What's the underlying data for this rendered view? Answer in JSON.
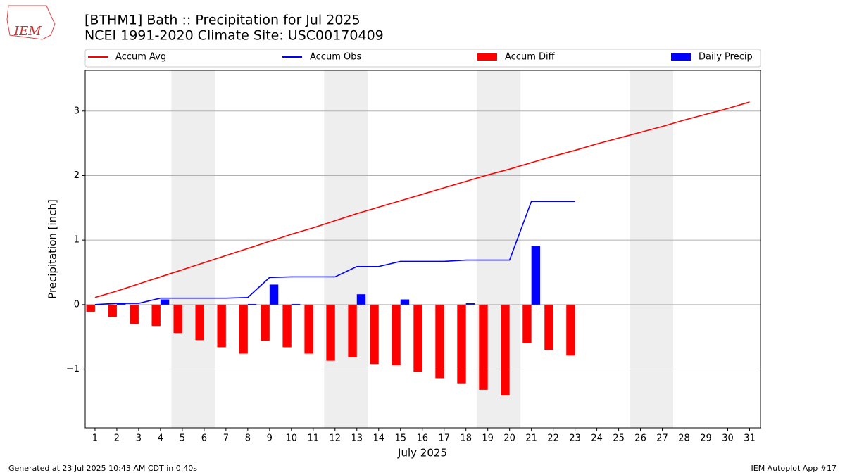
{
  "logo": "IEM",
  "footer_left": "Generated at 23 Jul 2025 10:43 AM CDT in 0.40s",
  "footer_right": "IEM Autoplot App #17",
  "chart_data": {
    "type": "combo",
    "title": "[BTHM1] Bath :: Precipitation for Jul 2025",
    "subtitle": "NCEI 1991-2020 Climate Site: USC00170409",
    "x_label": "July 2025",
    "y_label": "Precipitation [inch]",
    "x": [
      1,
      2,
      3,
      4,
      5,
      6,
      7,
      8,
      9,
      10,
      11,
      12,
      13,
      14,
      15,
      16,
      17,
      18,
      19,
      20,
      21,
      22,
      23,
      24,
      25,
      26,
      27,
      28,
      29,
      30,
      31
    ],
    "xlim": [
      0.55,
      31.5
    ],
    "xticks": [
      1,
      2,
      3,
      4,
      5,
      6,
      7,
      8,
      9,
      10,
      11,
      12,
      13,
      14,
      15,
      16,
      17,
      18,
      19,
      20,
      21,
      22,
      23,
      24,
      25,
      26,
      27,
      28,
      29,
      30,
      31
    ],
    "ylim": [
      -1.91,
      3.63
    ],
    "yticks": [
      {
        "value": -1,
        "label": "−1"
      },
      0,
      1,
      2,
      3
    ],
    "grid": true,
    "weekend_spans": [
      [
        4.5,
        6.5
      ],
      [
        11.5,
        13.5
      ],
      [
        18.5,
        20.5
      ],
      [
        25.5,
        27.5
      ]
    ],
    "series": [
      {
        "name": "Accum Avg",
        "kind": "line",
        "color": "#ff0000",
        "values": [
          0.11,
          0.21,
          0.32,
          0.43,
          0.54,
          0.65,
          0.76,
          0.87,
          0.98,
          1.09,
          1.19,
          1.3,
          1.41,
          1.51,
          1.61,
          1.71,
          1.81,
          1.91,
          2.01,
          2.1,
          2.2,
          2.3,
          2.39,
          2.49,
          2.58,
          2.67,
          2.76,
          2.86,
          2.95,
          3.04,
          3.14
        ]
      },
      {
        "name": "Accum Obs",
        "kind": "line",
        "color": "#0000ff",
        "values": [
          0,
          0.02,
          0.02,
          0.1,
          0.1,
          0.1,
          0.1,
          0.11,
          0.42,
          0.43,
          0.43,
          0.43,
          0.59,
          0.59,
          0.67,
          0.67,
          0.67,
          0.69,
          0.69,
          0.69,
          1.6,
          1.6,
          1.6,
          null,
          null,
          null,
          null,
          null,
          null,
          null,
          null
        ]
      },
      {
        "name": "Accum Diff",
        "kind": "bar",
        "offset": -0.2,
        "color": "#ff0000",
        "values": [
          -0.11,
          -0.19,
          -0.3,
          -0.33,
          -0.44,
          -0.55,
          -0.66,
          -0.76,
          -0.56,
          -0.66,
          -0.76,
          -0.87,
          -0.82,
          -0.92,
          -0.94,
          -1.04,
          -1.14,
          -1.22,
          -1.32,
          -1.41,
          -0.6,
          -0.7,
          -0.79,
          null,
          null,
          null,
          null,
          null,
          null,
          null,
          null
        ]
      },
      {
        "name": "Daily Precip",
        "kind": "bar",
        "offset": 0.2,
        "color": "#0000ff",
        "values": [
          0,
          0.02,
          0,
          0.08,
          0,
          0,
          0,
          0.01,
          0.31,
          0.01,
          0,
          0,
          0.16,
          0,
          0.08,
          0,
          0,
          0.02,
          0,
          0,
          0.91,
          0,
          0,
          null,
          null,
          null,
          null,
          null,
          null,
          null,
          null
        ]
      }
    ]
  }
}
